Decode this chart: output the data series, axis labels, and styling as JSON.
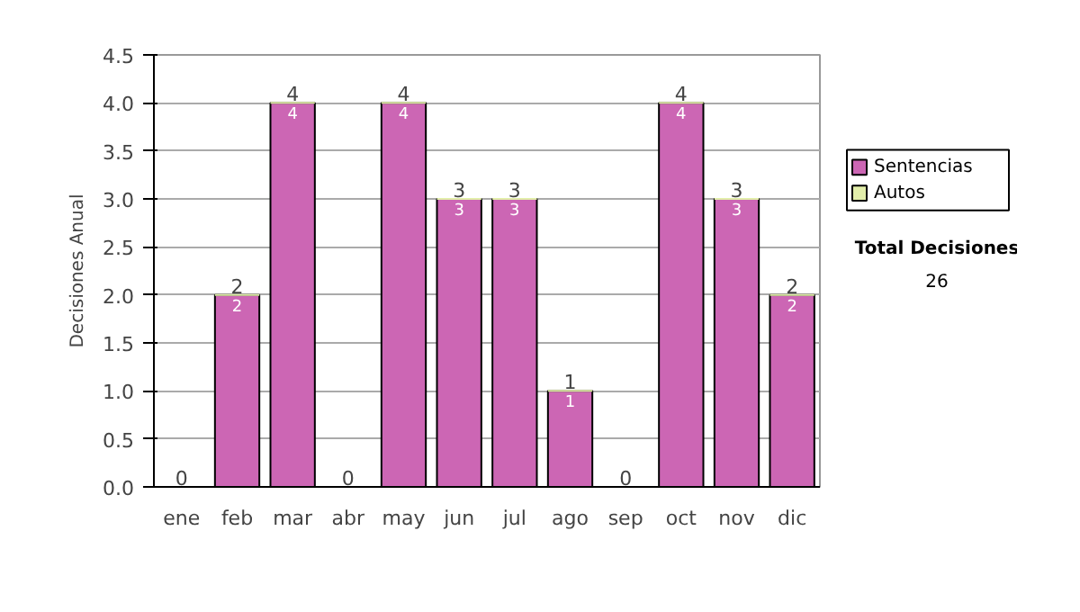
{
  "chart_data": {
    "type": "bar",
    "ylabel": "Decisiones Anual",
    "categories": [
      "ene",
      "feb",
      "mar",
      "abr",
      "may",
      "jun",
      "jul",
      "ago",
      "sep",
      "oct",
      "nov",
      "dic"
    ],
    "stacked": true,
    "series": [
      {
        "name": "Sentencias",
        "color": "#cc66b4",
        "values": [
          0,
          2,
          4,
          0,
          4,
          3,
          3,
          1,
          0,
          4,
          3,
          2
        ],
        "value_labels": [
          null,
          "2",
          "4",
          null,
          "4",
          "3",
          "3",
          "1",
          null,
          "4",
          "3",
          "2"
        ]
      },
      {
        "name": "Autos",
        "color": "#e2eeaa",
        "values": [
          0,
          0,
          0,
          0,
          0,
          0,
          0,
          0,
          0,
          0,
          0,
          0
        ]
      }
    ],
    "totals": [
      "0",
      "2",
      "4",
      "0",
      "4",
      "3",
      "3",
      "1",
      "0",
      "4",
      "3",
      "2"
    ],
    "ylim": [
      0,
      4.5
    ],
    "yticks": [
      {
        "value": 0,
        "label": "0.0"
      },
      0.5,
      {
        "value": 1,
        "label": "1.0"
      },
      1.5,
      {
        "value": 2,
        "label": "2.0"
      },
      2.5,
      {
        "value": 3,
        "label": "3.0"
      },
      3.5,
      {
        "value": 4,
        "label": "4.0"
      },
      4.5
    ],
    "grid": "y",
    "legend": "right",
    "annotations": [
      "Total Decisiones",
      "26"
    ]
  }
}
